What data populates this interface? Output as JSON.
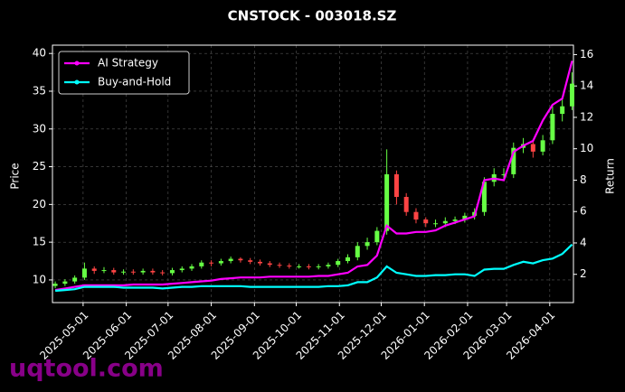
{
  "chart_data": {
    "type": "candlestick",
    "title": "CNSTOCK - 003018.SZ",
    "ylabel": "Price",
    "y2label": "Return",
    "watermark": "uqtool.com",
    "x": [
      "2025-04-11",
      "2025-04-18",
      "2025-04-25",
      "2025-05-02",
      "2025-05-09",
      "2025-05-16",
      "2025-05-23",
      "2025-05-30",
      "2025-06-06",
      "2025-06-13",
      "2025-06-20",
      "2025-06-27",
      "2025-07-04",
      "2025-07-11",
      "2025-07-18",
      "2025-07-25",
      "2025-08-01",
      "2025-08-08",
      "2025-08-15",
      "2025-08-22",
      "2025-08-29",
      "2025-09-05",
      "2025-09-12",
      "2025-09-19",
      "2025-09-26",
      "2025-10-03",
      "2025-10-10",
      "2025-10-17",
      "2025-10-24",
      "2025-10-31",
      "2025-11-07",
      "2025-11-14",
      "2025-11-21",
      "2025-11-28",
      "2025-12-05",
      "2025-12-12",
      "2025-12-19",
      "2025-12-26",
      "2026-01-02",
      "2026-01-09",
      "2026-01-16",
      "2026-01-23",
      "2026-01-30",
      "2026-02-06",
      "2026-02-13",
      "2026-02-20",
      "2026-02-27",
      "2026-03-06",
      "2026-03-13",
      "2026-03-20",
      "2026-03-27",
      "2026-04-03",
      "2026-04-10",
      "2026-04-17"
    ],
    "open": [
      9.2,
      9.5,
      9.8,
      10.3,
      11.5,
      11.2,
      11.3,
      11.0,
      11.1,
      11.0,
      11.2,
      11.0,
      10.9,
      11.3,
      11.5,
      11.8,
      12.3,
      12.2,
      12.5,
      12.8,
      12.6,
      12.4,
      12.2,
      12.0,
      11.9,
      11.8,
      11.8,
      11.7,
      11.8,
      12.0,
      12.5,
      13.0,
      14.5,
      15.0,
      16.5,
      24.0,
      21.0,
      19.0,
      18.0,
      17.5,
      17.5,
      17.8,
      18.0,
      18.5,
      19.0,
      23.0,
      24.0,
      24.0,
      27.5,
      28.0,
      27.0,
      28.5,
      32.0,
      33.0
    ],
    "high": [
      9.8,
      10.1,
      10.6,
      12.3,
      11.8,
      11.7,
      11.6,
      11.4,
      11.4,
      11.5,
      11.5,
      11.3,
      11.6,
      11.8,
      12.1,
      12.6,
      12.6,
      12.8,
      13.1,
      13.0,
      12.9,
      12.7,
      12.5,
      12.3,
      12.2,
      12.1,
      12.1,
      12.1,
      12.3,
      12.8,
      13.4,
      15.0,
      15.6,
      17.0,
      27.3,
      24.5,
      21.5,
      19.5,
      18.3,
      18.0,
      18.3,
      18.4,
      18.9,
      19.5,
      23.6,
      24.8,
      24.8,
      28.2,
      28.8,
      28.6,
      29.2,
      33.0,
      34.0,
      37.5
    ],
    "low": [
      8.9,
      9.2,
      9.5,
      10.0,
      10.8,
      10.9,
      10.7,
      10.7,
      10.7,
      10.7,
      10.7,
      10.6,
      10.6,
      11.0,
      11.2,
      11.5,
      11.8,
      11.9,
      12.2,
      12.3,
      12.1,
      11.9,
      11.7,
      11.6,
      11.5,
      11.5,
      11.4,
      11.4,
      11.5,
      11.7,
      12.2,
      12.6,
      14.0,
      14.6,
      16.0,
      20.0,
      18.5,
      17.5,
      17.0,
      17.0,
      17.0,
      17.4,
      17.6,
      18.0,
      18.5,
      22.4,
      23.2,
      23.5,
      26.8,
      26.2,
      26.5,
      28.0,
      31.0,
      32.5
    ],
    "close": [
      9.5,
      9.8,
      10.3,
      11.5,
      11.2,
      11.3,
      11.0,
      11.1,
      11.0,
      11.2,
      11.0,
      10.9,
      11.3,
      11.5,
      11.8,
      12.3,
      12.2,
      12.5,
      12.8,
      12.6,
      12.4,
      12.2,
      12.0,
      11.9,
      11.8,
      11.8,
      11.7,
      11.8,
      12.0,
      12.5,
      13.0,
      14.5,
      15.0,
      16.5,
      24.0,
      21.0,
      19.0,
      18.0,
      17.5,
      17.5,
      17.8,
      18.0,
      18.5,
      19.0,
      23.0,
      24.0,
      24.0,
      27.5,
      28.0,
      27.0,
      28.5,
      32.0,
      33.0,
      36.0
    ],
    "up_color": "#66ff44",
    "down_color": "#ff4444",
    "series": [
      {
        "name": "AI Strategy",
        "color": "#ff00ff",
        "axis": "y2",
        "values": [
          1.0,
          1.1,
          1.2,
          1.3,
          1.3,
          1.3,
          1.3,
          1.3,
          1.35,
          1.35,
          1.35,
          1.35,
          1.4,
          1.45,
          1.5,
          1.55,
          1.6,
          1.7,
          1.75,
          1.8,
          1.8,
          1.8,
          1.85,
          1.85,
          1.85,
          1.85,
          1.85,
          1.9,
          1.9,
          2.0,
          2.1,
          2.5,
          2.6,
          3.2,
          5.1,
          4.6,
          4.6,
          4.7,
          4.7,
          4.8,
          5.1,
          5.3,
          5.5,
          5.7,
          8.0,
          8.1,
          8.0,
          9.8,
          10.2,
          10.5,
          11.8,
          12.8,
          13.2,
          15.6
        ]
      },
      {
        "name": "Buy-and-Hold",
        "color": "#00ffff",
        "axis": "y2",
        "values": [
          0.95,
          1.0,
          1.05,
          1.2,
          1.2,
          1.2,
          1.2,
          1.15,
          1.15,
          1.15,
          1.15,
          1.1,
          1.15,
          1.2,
          1.2,
          1.25,
          1.25,
          1.25,
          1.25,
          1.25,
          1.2,
          1.2,
          1.2,
          1.2,
          1.2,
          1.2,
          1.2,
          1.2,
          1.25,
          1.25,
          1.3,
          1.5,
          1.5,
          1.8,
          2.5,
          2.1,
          2.0,
          1.9,
          1.9,
          1.95,
          1.95,
          2.0,
          2.0,
          1.9,
          2.3,
          2.35,
          2.35,
          2.6,
          2.8,
          2.7,
          2.9,
          3.0,
          3.3,
          3.9
        ]
      }
    ],
    "xlim": [
      "2025-04-09",
      "2026-04-18"
    ],
    "xticks": [
      "2025-05-01",
      "2025-06-01",
      "2025-07-01",
      "2025-08-01",
      "2025-09-01",
      "2025-10-01",
      "2025-11-01",
      "2025-12-01",
      "2026-01-01",
      "2026-02-01",
      "2026-03-01",
      "2026-04-01"
    ],
    "ylim": [
      7.0,
      41.1
    ],
    "yticks": [
      10,
      15,
      20,
      25,
      30,
      35,
      40
    ],
    "y2lim": [
      0.2,
      16.6
    ],
    "y2ticks": [
      2,
      4,
      6,
      8,
      10,
      12,
      14,
      16
    ],
    "grid": true,
    "legend": "upper left"
  }
}
